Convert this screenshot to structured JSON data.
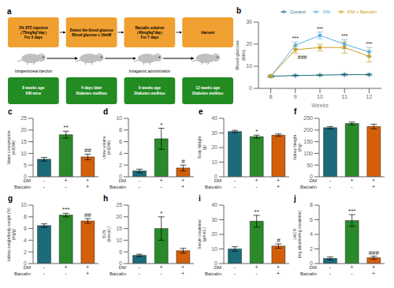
{
  "chart_data": [
    {
      "type": "diagram",
      "title": "a",
      "steps": [
        "2% STZ  injection\n（75mg/kg*day）\nFor 3 days",
        "Detect the blood glucose\nBlood glucose ≥ 16mM",
        "Baicalin solution\n（40mg/kg*day）\nFor 7 days",
        "Harvest"
      ],
      "stages": [
        "8 weeks age\nKM mice",
        "4 days later\nDiabetes mellitus",
        "9 weeks age\nDiabetes mellitus",
        "12 weeks age\nDiabetes mellitus"
      ],
      "annotations": [
        "Intraperitoneal injection",
        "Intragastric administration"
      ],
      "colors": [
        "#f0a030",
        "#228b22"
      ]
    },
    {
      "type": "line",
      "title": "b",
      "x": [
        8,
        9,
        10,
        11,
        12
      ],
      "xlabel": "Weeks",
      "ylabel": "Blood glucose\n(Mm)",
      "xlim": [
        7.5,
        12.5
      ],
      "xticks": [
        8,
        9,
        10,
        11,
        12
      ],
      "ylim": [
        0,
        30
      ],
      "yticks": [
        0,
        10,
        20,
        30
      ],
      "legend": "upper right",
      "series": [
        {
          "name": "Control",
          "color": "#1b6b7a",
          "marker": "plus",
          "values": [
            5.5,
            5.8,
            6.0,
            6.2,
            6.2
          ],
          "errors": [
            0.3,
            0.3,
            0.3,
            0.4,
            0.4
          ]
        },
        {
          "name": "DM",
          "color": "#5aade0",
          "marker": "square",
          "values": [
            5.5,
            19.5,
            24.0,
            20.0,
            16.5
          ],
          "errors": [
            0.5,
            1.5,
            1.5,
            2.0,
            2.0
          ]
        },
        {
          "name": "DM + Baicalin",
          "color": "#c8a020",
          "marker": "square",
          "values": [
            5.5,
            17.5,
            18.5,
            18.5,
            14.5
          ],
          "errors": [
            0.5,
            1.5,
            1.5,
            2.5,
            2.5
          ]
        }
      ],
      "annotations": [
        {
          "x": 9,
          "series": "DM",
          "text": "***"
        },
        {
          "x": 9,
          "series": "DM + Baicalin",
          "text": "###"
        },
        {
          "x": 10,
          "series": "DM",
          "text": "***"
        },
        {
          "x": 11,
          "series": "DM",
          "text": "***"
        },
        {
          "x": 12,
          "series": "DM",
          "text": "***"
        }
      ]
    },
    {
      "type": "bar",
      "title": "c",
      "ylabel": "Water consumption\n(ml/24h)",
      "categories": [
        "-\n-",
        "+\n-",
        "+\n+"
      ],
      "row_labels": [
        "DM",
        "Baicalin"
      ],
      "values": [
        7.5,
        18.0,
        8.5
      ],
      "errors": [
        0.8,
        1.5,
        1.2
      ],
      "colors": [
        "#1b6b7a",
        "#2a8a2a",
        "#d45f0a"
      ],
      "ylim": [
        0,
        25
      ],
      "yticks": [
        0,
        5,
        10,
        15,
        20,
        25
      ],
      "annotations": [
        {
          "category": "+\n-",
          "text": "**"
        },
        {
          "category": "+\n+",
          "text": "##"
        }
      ]
    },
    {
      "type": "bar",
      "title": "d",
      "ylabel": "Urine volume\n(ml/24h)",
      "categories": [
        "-\n-",
        "+\n-",
        "+\n+"
      ],
      "row_labels": [
        "DM",
        "Baicalin"
      ],
      "values": [
        1.0,
        6.5,
        1.5
      ],
      "errors": [
        0.3,
        1.8,
        0.5
      ],
      "colors": [
        "#1b6b7a",
        "#2a8a2a",
        "#d45f0a"
      ],
      "ylim": [
        0,
        10
      ],
      "yticks": [
        0,
        2,
        4,
        6,
        8,
        10
      ],
      "annotations": [
        {
          "category": "+\n-",
          "text": "*"
        },
        {
          "category": "+\n+",
          "text": "#"
        }
      ]
    },
    {
      "type": "bar",
      "title": "e",
      "ylabel": "Body Weight\n(g)",
      "categories": [
        "-\n-",
        "+\n-",
        "+\n+"
      ],
      "row_labels": [
        "DM",
        "Baicalin"
      ],
      "values": [
        31.0,
        27.5,
        28.5
      ],
      "errors": [
        0.8,
        1.0,
        0.8
      ],
      "colors": [
        "#1b6b7a",
        "#2a8a2a",
        "#d45f0a"
      ],
      "ylim": [
        0,
        40
      ],
      "yticks": [
        0,
        10,
        20,
        30,
        40
      ],
      "annotations": [
        {
          "category": "+\n-",
          "text": "*"
        }
      ]
    },
    {
      "type": "bar",
      "title": "f",
      "ylabel": "Kidney Weight\n(mg)",
      "categories": [
        "-\n-",
        "+\n-",
        "+\n+"
      ],
      "row_labels": [
        "DM",
        "Baicalin"
      ],
      "values": [
        210.0,
        228.0,
        215.0
      ],
      "errors": [
        5.0,
        6.0,
        10.0
      ],
      "colors": [
        "#1b6b7a",
        "#2a8a2a",
        "#d45f0a"
      ],
      "ylim": [
        0,
        250
      ],
      "yticks": [
        0,
        50,
        100,
        150,
        200,
        250
      ]
    },
    {
      "type": "bar",
      "title": "g",
      "ylabel": "kidney weight/body weight (%)\n(mg/g)",
      "categories": [
        "-\n-",
        "+\n-",
        "+\n+"
      ],
      "row_labels": [
        "DM",
        "Baicalin"
      ],
      "values": [
        6.5,
        8.3,
        7.3
      ],
      "errors": [
        0.3,
        0.3,
        0.4
      ],
      "colors": [
        "#1b6b7a",
        "#2a8a2a",
        "#d45f0a"
      ],
      "ylim": [
        0,
        10
      ],
      "yticks": [
        0,
        2,
        4,
        6,
        8,
        10
      ],
      "annotations": [
        {
          "category": "+\n-",
          "text": "***"
        },
        {
          "category": "+\n+",
          "text": "##"
        }
      ]
    },
    {
      "type": "bar",
      "title": "h",
      "ylabel": "BUN\n(mmol/L)",
      "categories": [
        "-\n-",
        "+\n-",
        "+\n+"
      ],
      "row_labels": [
        "DM",
        "Baicalin"
      ],
      "values": [
        3.5,
        15.0,
        5.5
      ],
      "errors": [
        0.5,
        5.0,
        1.0
      ],
      "colors": [
        "#1b6b7a",
        "#2a8a2a",
        "#d45f0a"
      ],
      "ylim": [
        0,
        25
      ],
      "yticks": [
        0,
        5,
        10,
        15,
        20,
        25
      ],
      "annotations": [
        {
          "category": "+\n-",
          "text": "*"
        }
      ]
    },
    {
      "type": "bar",
      "title": "i",
      "ylabel": "Serum creatinine\n(μmol/L)",
      "categories": [
        "-\n-",
        "+\n-",
        "+\n+"
      ],
      "row_labels": [
        "DM",
        "Baicalin"
      ],
      "values": [
        10.0,
        29.0,
        12.0
      ],
      "errors": [
        1.5,
        4.0,
        1.5
      ],
      "colors": [
        "#1b6b7a",
        "#2a8a2a",
        "#d45f0a"
      ],
      "ylim": [
        0,
        40
      ],
      "yticks": [
        0,
        10,
        20,
        30,
        40
      ],
      "annotations": [
        {
          "category": "+\n-",
          "text": "**"
        },
        {
          "category": "+\n+",
          "text": "#"
        }
      ]
    },
    {
      "type": "bar",
      "title": "j",
      "ylabel": "UACR\n(mg albumin/mg creatinine)",
      "categories": [
        "-\n-",
        "+\n-",
        "+\n+"
      ],
      "row_labels": [
        "DM",
        "Baicalin"
      ],
      "values": [
        0.7,
        5.9,
        0.8
      ],
      "errors": [
        0.2,
        0.8,
        0.2
      ],
      "colors": [
        "#1b6b7a",
        "#2a8a2a",
        "#d45f0a"
      ],
      "ylim": [
        0,
        8
      ],
      "yticks": [
        0,
        2,
        4,
        6,
        8
      ],
      "annotations": [
        {
          "category": "+\n-",
          "text": "***"
        },
        {
          "category": "+\n+",
          "text": "###"
        }
      ]
    }
  ]
}
